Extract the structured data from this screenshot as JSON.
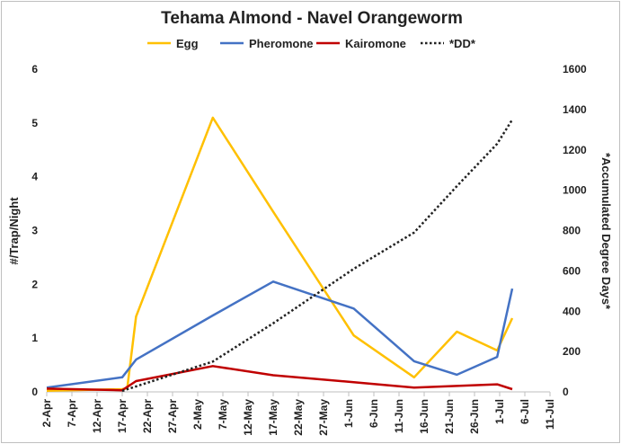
{
  "chart_data": {
    "type": "line",
    "title": "Tehama Almond - Navel Orangeworm",
    "ylabel": "#/Trap/Night",
    "y2label": "*Accumulated Degree Days*",
    "ylim": [
      0,
      6
    ],
    "y2lim": [
      0,
      1600
    ],
    "yticks": [
      "0",
      "1",
      "2",
      "3",
      "4",
      "5",
      "6"
    ],
    "y2ticks": [
      "0",
      "200",
      "400",
      "600",
      "800",
      "1000",
      "1200",
      "1400",
      "1600"
    ],
    "categories": [
      "2-Apr",
      "7-Apr",
      "12-Apr",
      "17-Apr",
      "22-Apr",
      "27-Apr",
      "2-May",
      "7-May",
      "12-May",
      "17-May",
      "22-May",
      "27-May",
      "1-Jun",
      "6-Jun",
      "11-Jun",
      "16-Jun",
      "21-Jun",
      "26-Jun",
      "1-Jul",
      "6-Jul",
      "11-Jul"
    ],
    "legend": "top",
    "grid": false,
    "series": [
      {
        "name": "Egg",
        "axis": "left",
        "color": "#ffc000",
        "style": "solid",
        "points": [
          [
            0,
            0.02
          ],
          [
            3,
            0.05
          ],
          [
            3.2,
            0.07
          ],
          [
            3.55,
            1.4
          ],
          [
            6.6,
            5.1
          ],
          [
            9,
            3.35
          ],
          [
            12.2,
            1.05
          ],
          [
            14.6,
            0.27
          ],
          [
            16.3,
            1.12
          ],
          [
            17.9,
            0.77
          ],
          [
            18.5,
            1.37
          ]
        ]
      },
      {
        "name": "Pheromone",
        "axis": "left",
        "color": "#4472c4",
        "style": "solid",
        "points": [
          [
            0,
            0.08
          ],
          [
            3,
            0.27
          ],
          [
            3.55,
            0.6
          ],
          [
            6.6,
            1.42
          ],
          [
            9,
            2.05
          ],
          [
            12.2,
            1.55
          ],
          [
            14.6,
            0.57
          ],
          [
            16.3,
            0.32
          ],
          [
            17.9,
            0.65
          ],
          [
            18.5,
            1.92
          ]
        ]
      },
      {
        "name": "Kairomone",
        "axis": "left",
        "color": "#c00000",
        "style": "solid",
        "points": [
          [
            0,
            0.06
          ],
          [
            3,
            0.03
          ],
          [
            3.55,
            0.2
          ],
          [
            6.6,
            0.48
          ],
          [
            9,
            0.31
          ],
          [
            12.2,
            0.18
          ],
          [
            14.6,
            0.08
          ],
          [
            16.3,
            0.11
          ],
          [
            17.9,
            0.14
          ],
          [
            18.5,
            0.05
          ]
        ]
      },
      {
        "name": "*DD*",
        "axis": "right",
        "color": "#222222",
        "style": "dotted",
        "points": [
          [
            3,
            5
          ],
          [
            6.6,
            150
          ],
          [
            9,
            340
          ],
          [
            12.2,
            610
          ],
          [
            14.6,
            790
          ],
          [
            16.3,
            1020
          ],
          [
            17.9,
            1230
          ],
          [
            18.5,
            1350
          ]
        ]
      }
    ]
  }
}
